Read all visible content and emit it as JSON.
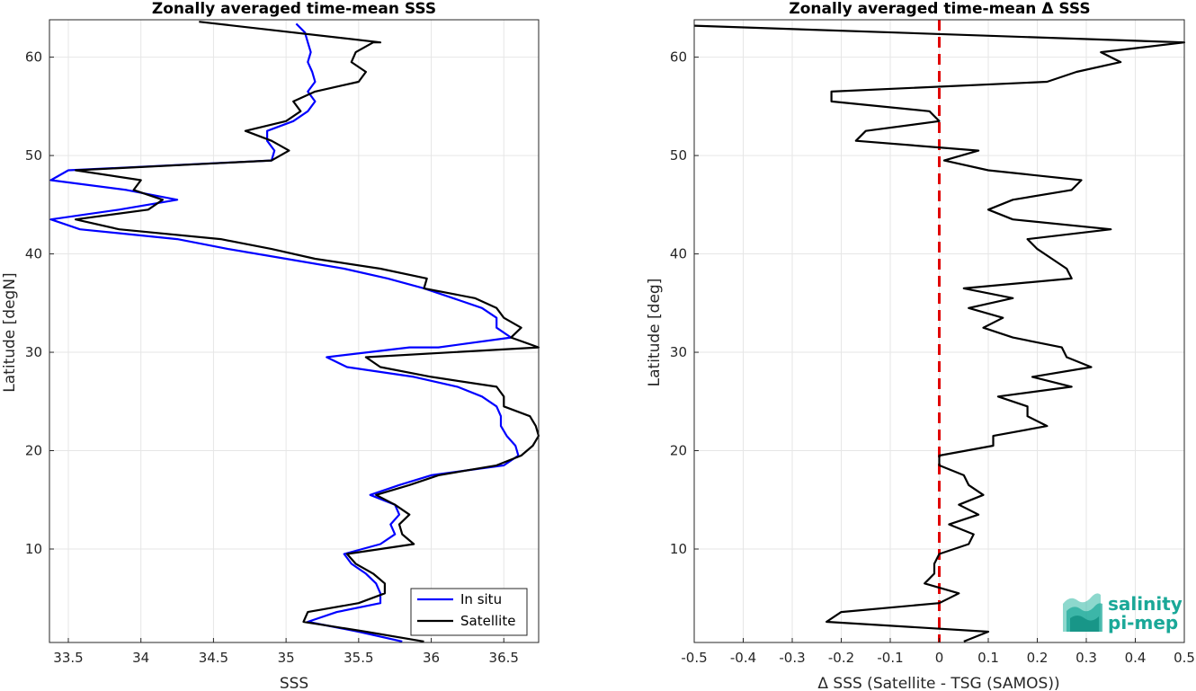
{
  "chart_data": [
    {
      "type": "line",
      "title": "Zonally averaged time-mean SSS",
      "xlabel": "SSS",
      "ylabel": "Latitude [degN]",
      "xlim": [
        33.37,
        36.74
      ],
      "ylim": [
        0.5,
        63.8
      ],
      "xticks": [
        "33.5",
        "34",
        "34.5",
        "35",
        "35.5",
        "36",
        "36.5"
      ],
      "yticks": [
        "10",
        "20",
        "30",
        "40",
        "50",
        "60"
      ],
      "grid": true,
      "legend_position": "bottom-right",
      "series": [
        {
          "name": "In situ",
          "color": "#0000ff",
          "points": [
            [
              35.8,
              0.6
            ],
            [
              35.5,
              1.6
            ],
            [
              35.15,
              2.6
            ],
            [
              35.35,
              3.6
            ],
            [
              35.65,
              4.5
            ],
            [
              35.65,
              5.5
            ],
            [
              35.62,
              6.5
            ],
            [
              35.55,
              7.5
            ],
            [
              35.45,
              8.5
            ],
            [
              35.4,
              9.5
            ],
            [
              35.65,
              10.5
            ],
            [
              35.75,
              11.5
            ],
            [
              35.72,
              12.5
            ],
            [
              35.78,
              13.5
            ],
            [
              35.75,
              14.5
            ],
            [
              35.58,
              15.5
            ],
            [
              35.78,
              16.5
            ],
            [
              36.0,
              17.5
            ],
            [
              36.5,
              18.5
            ],
            [
              36.6,
              19.5
            ],
            [
              36.58,
              20.5
            ],
            [
              36.52,
              21.5
            ],
            [
              36.48,
              22.5
            ],
            [
              36.48,
              23.5
            ],
            [
              36.45,
              24.5
            ],
            [
              36.35,
              25.5
            ],
            [
              36.18,
              26.5
            ],
            [
              35.88,
              27.5
            ],
            [
              35.42,
              28.5
            ],
            [
              35.28,
              29.5
            ],
            [
              35.85,
              30.5
            ],
            [
              36.05,
              30.5
            ],
            [
              36.55,
              31.5
            ],
            [
              36.45,
              32.5
            ],
            [
              36.45,
              33.5
            ],
            [
              36.35,
              34.5
            ],
            [
              36.15,
              35.5
            ],
            [
              35.95,
              36.5
            ],
            [
              35.7,
              37.5
            ],
            [
              35.4,
              38.5
            ],
            [
              35.0,
              39.5
            ],
            [
              34.6,
              40.5
            ],
            [
              34.25,
              41.5
            ],
            [
              33.58,
              42.5
            ],
            [
              33.38,
              43.5
            ],
            [
              33.85,
              44.5
            ],
            [
              34.25,
              45.5
            ],
            [
              33.9,
              46.5
            ],
            [
              33.38,
              47.5
            ],
            [
              33.5,
              48.5
            ],
            [
              34.9,
              49.5
            ],
            [
              34.92,
              50.5
            ],
            [
              34.87,
              51.5
            ],
            [
              34.87,
              52.5
            ],
            [
              35.05,
              53.5
            ],
            [
              35.15,
              54.5
            ],
            [
              35.2,
              55.5
            ],
            [
              35.15,
              56.5
            ],
            [
              35.2,
              57.5
            ],
            [
              35.18,
              58.5
            ],
            [
              35.15,
              59.5
            ],
            [
              35.17,
              60.5
            ],
            [
              35.15,
              61.5
            ],
            [
              35.13,
              62.5
            ],
            [
              35.07,
              63.4
            ]
          ]
        },
        {
          "name": "Satellite",
          "color": "#000000",
          "points": [
            [
              35.95,
              0.6
            ],
            [
              35.55,
              1.6
            ],
            [
              35.12,
              2.6
            ],
            [
              35.15,
              3.6
            ],
            [
              35.5,
              4.5
            ],
            [
              35.68,
              5.5
            ],
            [
              35.68,
              6.5
            ],
            [
              35.6,
              7.5
            ],
            [
              35.48,
              8.5
            ],
            [
              35.42,
              9.5
            ],
            [
              35.88,
              10.5
            ],
            [
              35.8,
              11.5
            ],
            [
              35.78,
              12.5
            ],
            [
              35.85,
              13.5
            ],
            [
              35.75,
              14.5
            ],
            [
              35.62,
              15.5
            ],
            [
              35.85,
              16.5
            ],
            [
              36.05,
              17.5
            ],
            [
              36.45,
              18.5
            ],
            [
              36.62,
              19.5
            ],
            [
              36.7,
              20.5
            ],
            [
              36.74,
              21.5
            ],
            [
              36.72,
              22.5
            ],
            [
              36.68,
              23.5
            ],
            [
              36.5,
              24.5
            ],
            [
              36.5,
              25.5
            ],
            [
              36.45,
              26.5
            ],
            [
              36.0,
              27.5
            ],
            [
              35.65,
              28.5
            ],
            [
              35.55,
              29.5
            ],
            [
              36.74,
              30.5
            ],
            [
              36.55,
              31.5
            ],
            [
              36.62,
              32.5
            ],
            [
              36.5,
              33.5
            ],
            [
              36.45,
              34.5
            ],
            [
              36.3,
              35.5
            ],
            [
              35.95,
              36.5
            ],
            [
              35.97,
              37.5
            ],
            [
              35.65,
              38.5
            ],
            [
              35.2,
              39.5
            ],
            [
              34.9,
              40.5
            ],
            [
              34.55,
              41.5
            ],
            [
              33.85,
              42.5
            ],
            [
              33.55,
              43.5
            ],
            [
              34.05,
              44.5
            ],
            [
              34.15,
              45.5
            ],
            [
              33.95,
              46.5
            ],
            [
              34.0,
              47.5
            ],
            [
              33.55,
              48.5
            ],
            [
              34.9,
              49.5
            ],
            [
              35.02,
              50.5
            ],
            [
              34.9,
              51.5
            ],
            [
              34.72,
              52.5
            ],
            [
              35.0,
              53.5
            ],
            [
              35.1,
              54.5
            ],
            [
              35.05,
              55.5
            ],
            [
              35.2,
              56.5
            ],
            [
              35.5,
              57.5
            ],
            [
              35.55,
              58.5
            ],
            [
              35.45,
              59.5
            ],
            [
              35.48,
              60.5
            ],
            [
              35.6,
              61.5
            ],
            [
              35.65,
              61.5
            ],
            [
              34.4,
              63.6
            ]
          ]
        }
      ]
    },
    {
      "type": "line",
      "title": "Zonally averaged time-mean Δ SSS",
      "xlabel": "Δ SSS (Satellite - TSG (SAMOS))",
      "ylabel": "Latitude [deg]",
      "xlim": [
        -0.5,
        0.5
      ],
      "ylim": [
        0.5,
        63.8
      ],
      "xticks": [
        "-0.5",
        "-0.4",
        "-0.3",
        "-0.2",
        "-0.1",
        "0",
        "0.1",
        "0.2",
        "0.3",
        "0.4",
        "0.5"
      ],
      "yticks": [
        "10",
        "20",
        "30",
        "40",
        "50",
        "60"
      ],
      "grid": true,
      "reference_line": {
        "x": 0,
        "color": "#e00000",
        "style": "dashed"
      },
      "series": [
        {
          "color": "#000000",
          "points": [
            [
              0.05,
              0.6
            ],
            [
              0.1,
              1.6
            ],
            [
              -0.23,
              2.6
            ],
            [
              -0.2,
              3.6
            ],
            [
              0.0,
              4.5
            ],
            [
              0.04,
              5.5
            ],
            [
              -0.03,
              6.5
            ],
            [
              -0.01,
              7.5
            ],
            [
              -0.01,
              8.5
            ],
            [
              0.0,
              9.5
            ],
            [
              0.06,
              10.5
            ],
            [
              0.07,
              11.5
            ],
            [
              0.02,
              12.5
            ],
            [
              0.08,
              13.5
            ],
            [
              0.04,
              14.5
            ],
            [
              0.09,
              15.5
            ],
            [
              0.06,
              16.5
            ],
            [
              0.05,
              17.5
            ],
            [
              0.0,
              18.5
            ],
            [
              0.0,
              19.5
            ],
            [
              0.11,
              20.5
            ],
            [
              0.11,
              21.5
            ],
            [
              0.22,
              22.5
            ],
            [
              0.18,
              23.5
            ],
            [
              0.18,
              24.5
            ],
            [
              0.12,
              25.5
            ],
            [
              0.27,
              26.5
            ],
            [
              0.19,
              27.5
            ],
            [
              0.31,
              28.5
            ],
            [
              0.26,
              29.5
            ],
            [
              0.25,
              30.5
            ],
            [
              0.15,
              31.5
            ],
            [
              0.09,
              32.5
            ],
            [
              0.13,
              33.5
            ],
            [
              0.06,
              34.5
            ],
            [
              0.15,
              35.5
            ],
            [
              0.05,
              36.5
            ],
            [
              0.27,
              37.5
            ],
            [
              0.26,
              38.5
            ],
            [
              0.23,
              39.5
            ],
            [
              0.2,
              40.5
            ],
            [
              0.18,
              41.5
            ],
            [
              0.35,
              42.5
            ],
            [
              0.15,
              43.5
            ],
            [
              0.1,
              44.5
            ],
            [
              0.15,
              45.5
            ],
            [
              0.27,
              46.5
            ],
            [
              0.29,
              47.5
            ],
            [
              0.1,
              48.5
            ],
            [
              0.01,
              49.5
            ],
            [
              0.08,
              50.5
            ],
            [
              -0.17,
              51.5
            ],
            [
              -0.15,
              52.5
            ],
            [
              0.0,
              53.5
            ],
            [
              -0.02,
              54.5
            ],
            [
              -0.22,
              55.5
            ],
            [
              -0.22,
              56.5
            ],
            [
              0.22,
              57.5
            ],
            [
              0.28,
              58.5
            ],
            [
              0.37,
              59.5
            ],
            [
              0.33,
              60.5
            ],
            [
              0.5,
              61.5
            ],
            [
              -0.5,
              63.2
            ]
          ]
        }
      ]
    }
  ],
  "legend": {
    "items": [
      {
        "label": "In situ",
        "color": "#0000ff"
      },
      {
        "label": "Satellite",
        "color": "#000000"
      }
    ]
  },
  "logo": {
    "line1": "salinity",
    "line2": "pi-mep",
    "color": "#1aa898"
  }
}
